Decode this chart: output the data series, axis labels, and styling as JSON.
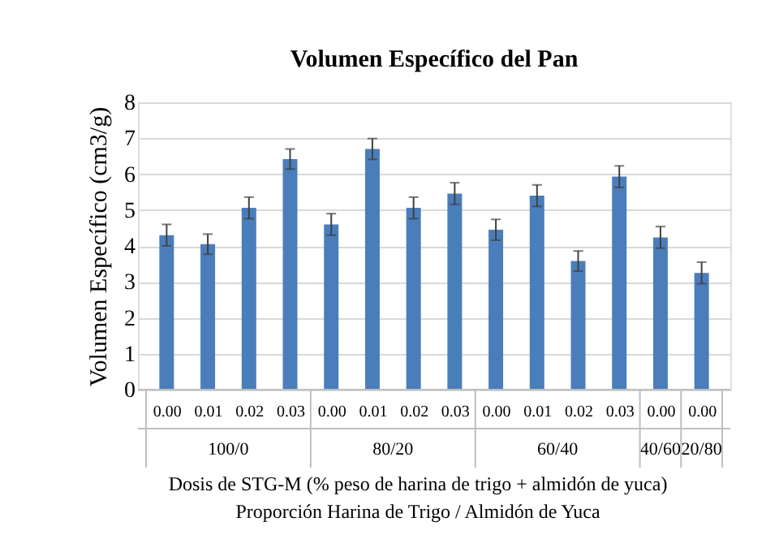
{
  "chart_data": {
    "type": "bar",
    "title": "Volumen Específico del Pan",
    "categories": [
      "0.00",
      "0.01",
      "0.02",
      "0.03",
      "0.00",
      "0.01",
      "0.02",
      "0.03",
      "0.00",
      "0.01",
      "0.02",
      "0.03",
      "0.00",
      "0.00"
    ],
    "values": [
      4.3,
      4.05,
      5.06,
      6.42,
      4.6,
      6.7,
      5.06,
      5.46,
      4.45,
      5.4,
      3.58,
      5.93,
      4.24,
      3.25
    ],
    "errors": [
      0.3,
      0.28,
      0.3,
      0.28,
      0.3,
      0.29,
      0.3,
      0.3,
      0.29,
      0.3,
      0.28,
      0.3,
      0.3,
      0.3
    ],
    "color": "#4a7ebb",
    "ylim": [
      0,
      8
    ],
    "yticks": [
      0,
      1,
      2,
      3,
      4,
      5,
      6,
      7,
      8
    ],
    "grid": "y",
    "ylabel": "Volumen Específico (cm3/g)",
    "xlabel": "Dosis de STG-M (% peso de harina de trigo + almidón de yuca)",
    "annotations": [
      "100/0",
      "80/20",
      "60/40",
      "40/60",
      "20/80",
      "Proporción Harina de Trigo / Almidón de Yuca"
    ]
  }
}
